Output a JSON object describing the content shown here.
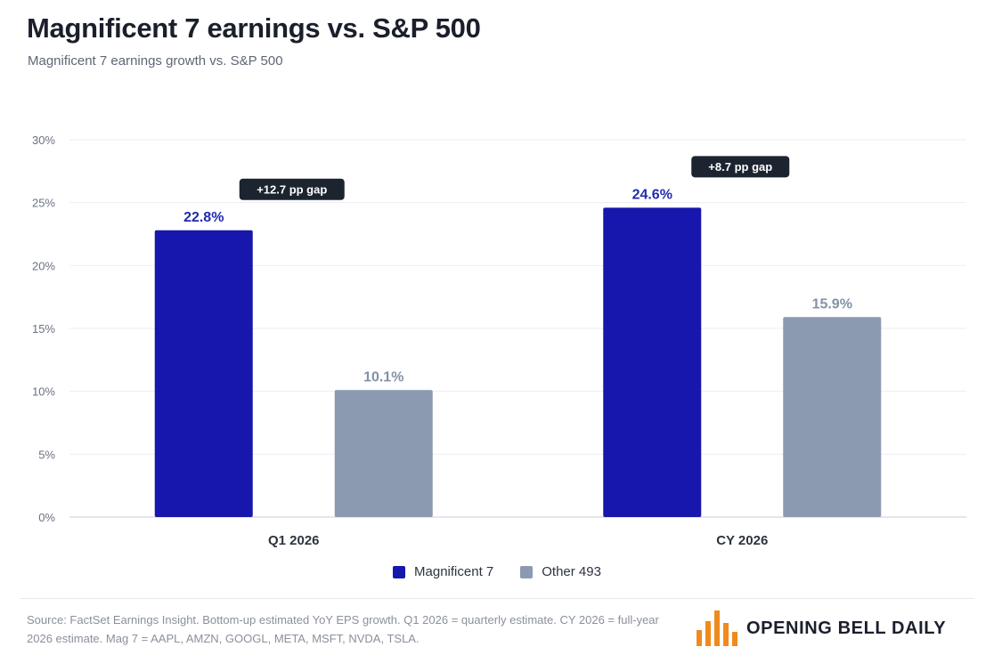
{
  "header": {
    "title": "Magnificent 7 earnings vs. S&P 500",
    "subtitle": "Magnificent 7 earnings growth vs. S&P 500"
  },
  "chart_data": {
    "type": "bar",
    "categories": [
      "Q1 2026",
      "CY 2026"
    ],
    "series": [
      {
        "name": "Magnificent 7",
        "color": "#1717ad",
        "label_color": "#1f2bb0",
        "values": [
          22.8,
          24.6
        ],
        "labels": [
          "22.8%",
          "24.6%"
        ]
      },
      {
        "name": "Other 493",
        "color": "#8b9ab0",
        "label_color": "#8291a8",
        "values": [
          10.1,
          15.9
        ],
        "labels": [
          "10.1%",
          "15.9%"
        ]
      }
    ],
    "annotations": [
      "+12.7 pp gap",
      "+8.7 pp gap"
    ],
    "yticks": [
      0,
      5,
      10,
      15,
      20,
      25,
      30
    ],
    "ytick_labels": [
      "0%",
      "5%",
      "10%",
      "15%",
      "20%",
      "25%",
      "30%"
    ],
    "ylim": [
      0,
      30
    ],
    "grid": true,
    "legend": "bottom-center"
  },
  "legend": {
    "items": [
      {
        "label": "Magnificent 7",
        "color": "#1717ad"
      },
      {
        "label": "Other 493",
        "color": "#8b9ab0"
      }
    ]
  },
  "footer": {
    "source": "Source: FactSet Earnings Insight. Bottom-up estimated YoY EPS growth. Q1 2026 = quarterly estimate. CY 2026 = full-year 2026 estimate. Mag 7 = AAPL, AMZN, GOOGL, META, MSFT, NVDA, TSLA.",
    "brand": "OPENING BELL DAILY",
    "brand_color": "#f08a1c"
  }
}
